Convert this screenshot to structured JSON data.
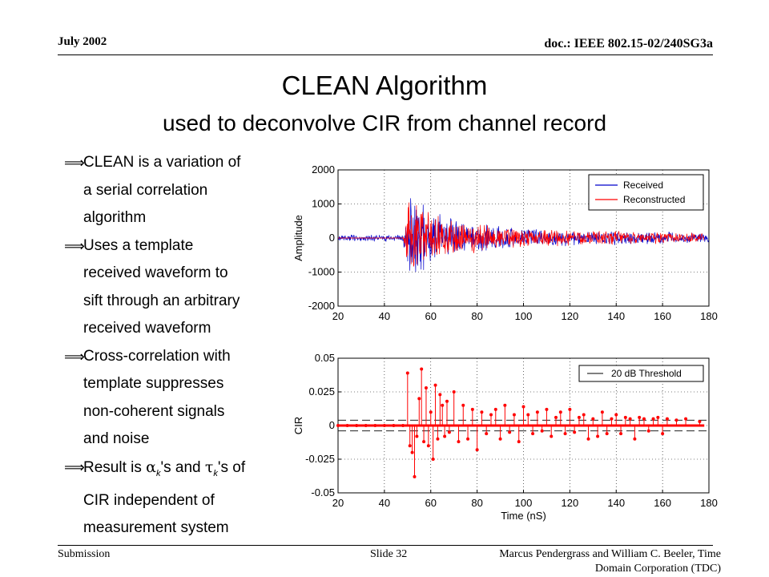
{
  "header": {
    "date": "July 2002",
    "doc_id": "doc.: IEEE 802.15-02/240SG3a"
  },
  "title": {
    "main": "CLEAN Algorithm",
    "subtitle": "used to deconvolve CIR from channel record"
  },
  "bullets": [
    {
      "lines": [
        "CLEAN is a variation of",
        "a serial correlation",
        "algorithm"
      ]
    },
    {
      "lines": [
        "Uses a template",
        "received waveform to",
        "sift through an arbitrary",
        "received waveform"
      ]
    },
    {
      "lines": [
        "Cross-correlation with",
        "template suppresses",
        "non-coherent signals",
        "and noise"
      ]
    },
    {
      "lines": [
        "Result is α_k's and τ_k's of",
        "CIR independent of",
        "measurement system"
      ]
    }
  ],
  "footer": {
    "left": "Submission",
    "center": "Slide 32",
    "right_line1": "Marcus Pendergrass and William  C. Beeler, Time",
    "right_line2": "Domain Corporation (TDC)"
  },
  "chart_data": [
    {
      "type": "line",
      "ylabel": "Amplitude",
      "xlabel": "",
      "xlim": [
        20,
        180
      ],
      "ylim": [
        -2000,
        2000
      ],
      "xticks": [
        "20",
        "40",
        "60",
        "80",
        "100",
        "120",
        "140",
        "160",
        "180"
      ],
      "yticks": [
        "2000",
        "1000",
        "0",
        "-1000",
        "-2000"
      ],
      "grid": true,
      "legend_position": "top-right",
      "series": [
        {
          "name": "Received",
          "color": "#0000cc",
          "envelope": {
            "x": [
              20,
              48,
              50,
              52,
              55,
              60,
              70,
              80,
              100,
              120,
              150,
              180
            ],
            "amplitude": [
              110,
              110,
              1300,
              1500,
              1200,
              800,
              600,
              450,
              300,
              260,
              200,
              150
            ]
          }
        },
        {
          "name": "Reconstructed",
          "color": "#ff0000",
          "envelope": {
            "x": [
              20,
              48,
              50,
              52,
              55,
              60,
              70,
              80,
              100,
              120,
              150,
              178
            ],
            "amplitude": [
              0,
              0,
              1300,
              1500,
              1200,
              800,
              600,
              450,
              300,
              260,
              200,
              150
            ]
          }
        }
      ]
    },
    {
      "type": "stem",
      "ylabel": "CIR",
      "xlabel": "Time (nS)",
      "xlim": [
        20,
        180
      ],
      "ylim": [
        -0.05,
        0.05
      ],
      "xticks": [
        "20",
        "40",
        "60",
        "80",
        "100",
        "120",
        "140",
        "160",
        "180"
      ],
      "yticks": [
        "0.05",
        "0.025",
        "0",
        "-0.025",
        "-0.05"
      ],
      "grid": true,
      "legend_position": "top-right",
      "threshold": {
        "name": "20 dB Threshold",
        "value": 0.004,
        "color": "#000000"
      },
      "stem_color": "#ff0000",
      "x": [
        20,
        24,
        28,
        32,
        36,
        40,
        44,
        48,
        50,
        51,
        52,
        53,
        54,
        55,
        56,
        57,
        58,
        59,
        60,
        61,
        62,
        63,
        64,
        65,
        66,
        67,
        68,
        70,
        72,
        74,
        76,
        78,
        80,
        82,
        84,
        86,
        88,
        90,
        92,
        94,
        96,
        98,
        100,
        102,
        104,
        106,
        108,
        110,
        112,
        114,
        116,
        118,
        120,
        122,
        124,
        126,
        128,
        130,
        132,
        134,
        136,
        138,
        140,
        142,
        144,
        146,
        148,
        150,
        152,
        154,
        156,
        158,
        160,
        162,
        166,
        170,
        176
      ],
      "y": [
        0,
        0,
        0,
        0,
        0,
        0,
        0,
        0,
        0.039,
        -0.015,
        -0.02,
        -0.038,
        -0.008,
        0.02,
        0.042,
        -0.012,
        0.028,
        -0.015,
        0.01,
        -0.025,
        0.03,
        -0.01,
        0.023,
        0.015,
        -0.008,
        0.018,
        -0.005,
        0.025,
        -0.012,
        0.015,
        -0.01,
        0.012,
        -0.018,
        0.01,
        -0.006,
        0.008,
        0.012,
        -0.01,
        0.015,
        -0.005,
        0.008,
        -0.012,
        0.014,
        0.008,
        -0.006,
        0.01,
        -0.004,
        0.012,
        -0.008,
        0.006,
        0.01,
        -0.006,
        0.012,
        -0.005,
        0.006,
        0.008,
        -0.01,
        0.005,
        -0.008,
        0.01,
        -0.006,
        0.005,
        0.008,
        -0.006,
        0.006,
        0.005,
        -0.01,
        0.006,
        0.005,
        -0.004,
        0.005,
        0.006,
        -0.006,
        0.005,
        0.004,
        0.005,
        0.003
      ]
    }
  ]
}
